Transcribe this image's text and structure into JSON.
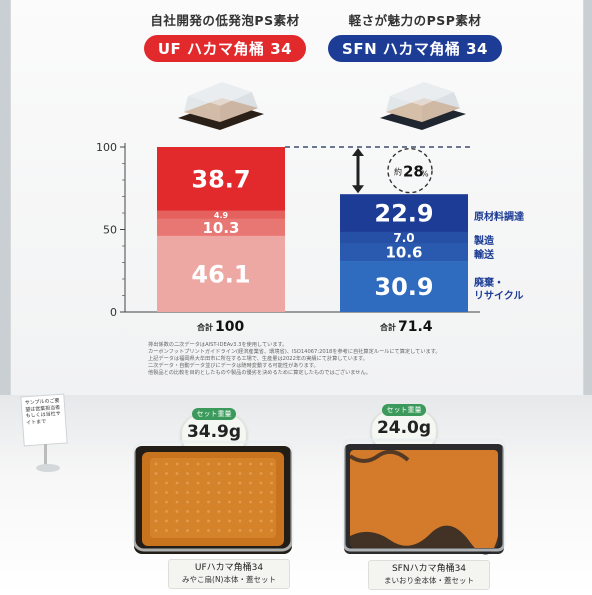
{
  "columns": [
    {
      "subtitle": "自社開発の低発泡PS素材",
      "product": "UF ハカマ角桶 34",
      "total_label": "合計",
      "total_value": "100",
      "color": "#e22a2d"
    },
    {
      "subtitle": "軽さが魅力のPSP素材",
      "product": "SFN ハカマ角桶 34",
      "total_label": "合計",
      "total_value": "71.4",
      "color": "#1c3c95"
    }
  ],
  "chart_data": {
    "type": "bar",
    "stacked": true,
    "categories": [
      "UF ハカマ角桶 34",
      "SFN ハカマ角桶 34"
    ],
    "series": [
      {
        "name": "廃棄・リサイクル",
        "values": [
          46.1,
          30.9
        ],
        "colors": [
          "#eea8a4",
          "#2f6cbf"
        ]
      },
      {
        "name": "輸送",
        "values": [
          10.3,
          10.6
        ],
        "colors": [
          "#e87673",
          "#2a5ab0"
        ]
      },
      {
        "name": "製造",
        "values": [
          4.9,
          7.0
        ],
        "colors": [
          "#e5615d",
          "#2650a6"
        ]
      },
      {
        "name": "原材料調達",
        "values": [
          38.7,
          22.9
        ],
        "colors": [
          "#e22a2d",
          "#1c3c95"
        ]
      }
    ],
    "ytick_labels": [
      "0",
      "50",
      "100"
    ],
    "ylim": [
      0,
      100
    ],
    "totals": [
      "100",
      "71.4"
    ],
    "annotation": {
      "prefix": "約",
      "value": "28",
      "unit": "%"
    },
    "legend_labels": [
      "原材料調達",
      "製造",
      "輸送",
      "廃棄・リサイクル"
    ]
  },
  "notes": [
    "排出係数の二次データはAIST-IDEAv3.3を使用しています。",
    "カーボンフットプリントガイドライン(経済産業省、環境省)、ISO14067:2018を参考に自社算定ルールにて算定しています。",
    "上記データは福岡県大牟田市に所在する工場で、生産量は2022年の実績にて計算しています。",
    "二次データ・自動データ並びにデータは随時変動する可能性があります。",
    "他製品との比較を目的としたものや製品の優劣を決めるために算定したものではございません。"
  ],
  "products": [
    {
      "weight_label": "セット重量",
      "weight": "34.9g",
      "name": "UFハカマ角桶34",
      "desc": "みやこ扇(N)本体・蓋セット"
    },
    {
      "weight_label": "セット重量",
      "weight": "24.0g",
      "name": "SFNハカマ角桶34",
      "desc": "まいおり金本体・蓋セット"
    }
  ],
  "sign_text": "サンプルのご要望は営業担当者もしくは当社サイトまで"
}
